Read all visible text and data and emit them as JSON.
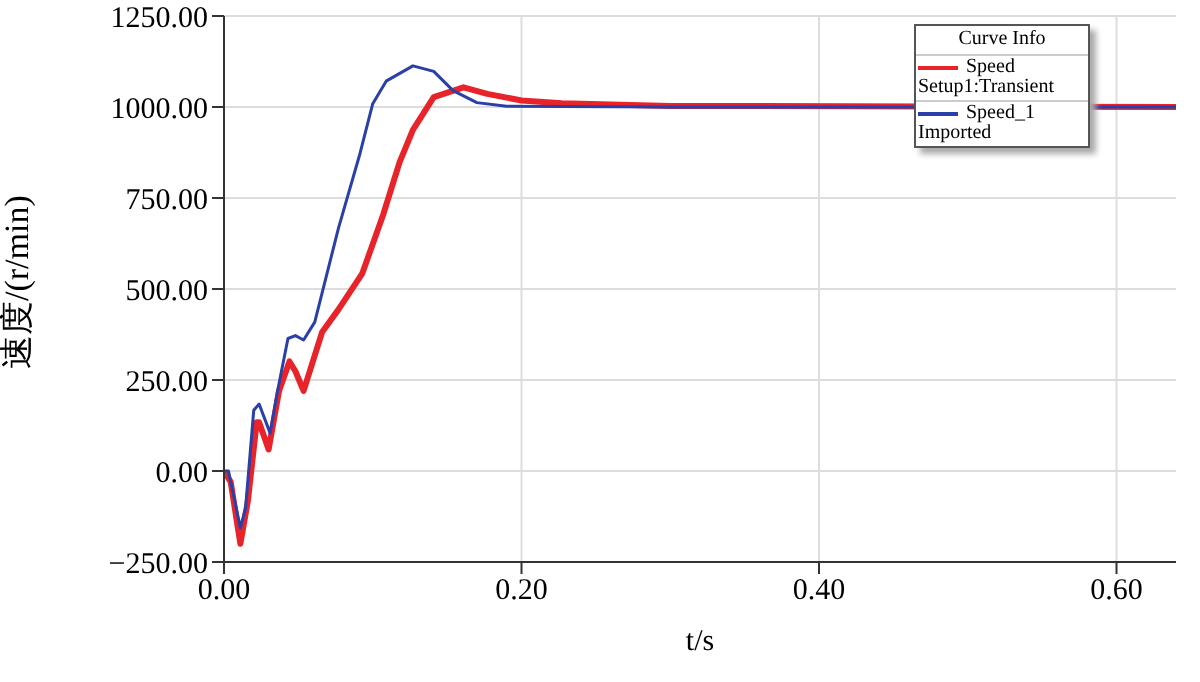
{
  "chart_data": {
    "type": "line",
    "xlabel": "t/s",
    "ylabel": "速度/(r/min)",
    "legend_title": "Curve Info",
    "legend": "top right",
    "grid": true,
    "line_style": "solid",
    "marker": "none",
    "xlim": [
      0,
      0.64
    ],
    "xticks": [
      {
        "value": 0,
        "label": "0.00"
      },
      {
        "value": 0.2,
        "label": "0.20"
      },
      {
        "value": 0.4,
        "label": "0.40"
      },
      {
        "value": 0.6,
        "label": "0.60"
      }
    ],
    "ylim": [
      -250,
      1250
    ],
    "yticks": [
      {
        "value": -250,
        "label": "−250.00"
      },
      {
        "value": 0,
        "label": "0.00"
      },
      {
        "value": 250,
        "label": "250.00"
      },
      {
        "value": 500,
        "label": "500.00"
      },
      {
        "value": 750,
        "label": "750.00"
      },
      {
        "value": 1000,
        "label": "1000.00"
      },
      {
        "value": 1250,
        "label": "1250.00"
      }
    ],
    "series": [
      {
        "name": "Speed Setup1:Transient",
        "color": "#e8242a",
        "x": [
          0,
          0.0045,
          0.011,
          0.016,
          0.022,
          0.0236,
          0.03,
          0.037,
          0.044,
          0.048,
          0.0535,
          0.066,
          0.077,
          0.093,
          0.107,
          0.118,
          0.127,
          0.141,
          0.161,
          0.177,
          0.2,
          0.227,
          0.3,
          0.64
        ],
        "values": [
          0,
          -30,
          -200,
          -84,
          134,
          134,
          59,
          220,
          301,
          274,
          220,
          382,
          444,
          543,
          704,
          848,
          937,
          1027,
          1054,
          1036,
          1018,
          1010,
          1003,
          1000
        ]
      },
      {
        "name": "Speed_1 Imported",
        "color": "#2b3fa8",
        "x": [
          0,
          0.003,
          0.011,
          0.0145,
          0.02,
          0.0236,
          0.031,
          0.036,
          0.043,
          0.048,
          0.0535,
          0.061,
          0.077,
          0.091,
          0.1,
          0.109,
          0.127,
          0.141,
          0.154,
          0.17,
          0.19,
          0.3,
          0.64
        ],
        "values": [
          0,
          0,
          -156,
          -102,
          167,
          184,
          104,
          220,
          364,
          372,
          360,
          409,
          668,
          866,
          1009,
          1071,
          1113,
          1098,
          1045,
          1012,
          1002,
          1000,
          1000
        ]
      }
    ]
  }
}
